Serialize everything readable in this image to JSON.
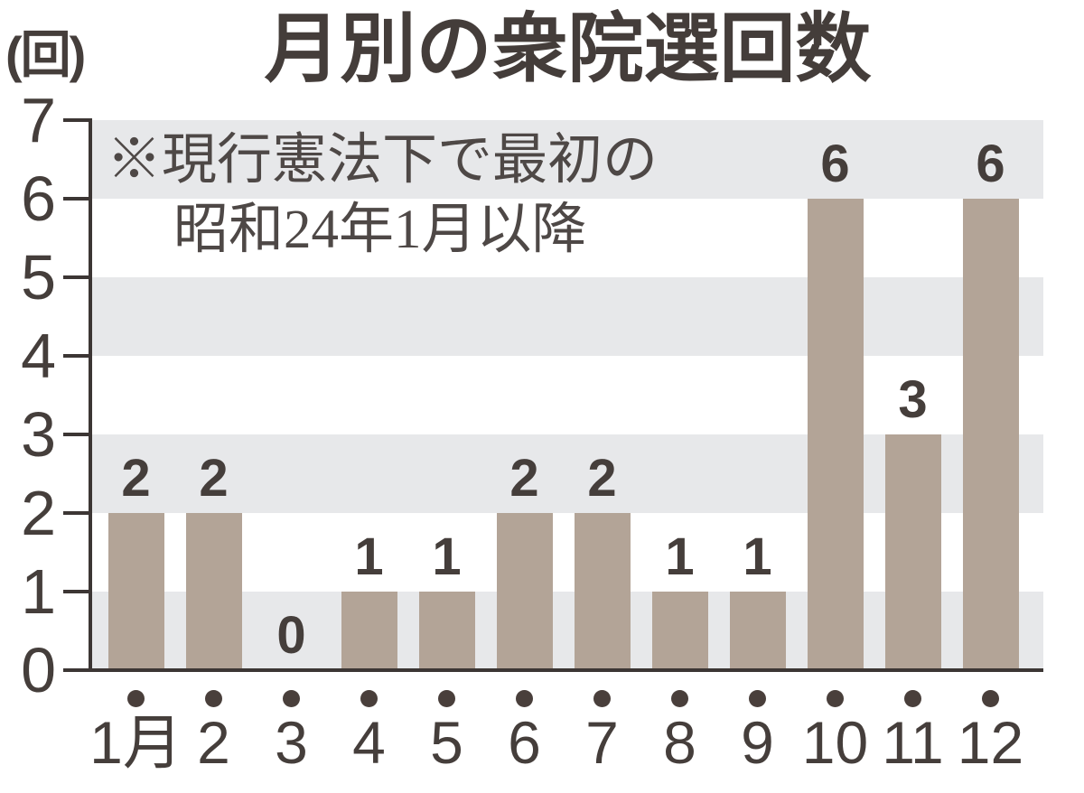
{
  "chart": {
    "title": "月別の衆院選回数",
    "unit_label": "(回)",
    "note_line1": "※現行憲法下で最初の",
    "note_line2": "昭和24年1月以降"
  },
  "chart_data": {
    "type": "bar",
    "title": "月別の衆院選回数",
    "ylabel": "(回)",
    "categories": [
      "1月",
      "2",
      "3",
      "4",
      "5",
      "6",
      "7",
      "8",
      "9",
      "10",
      "11",
      "12"
    ],
    "values": [
      2,
      2,
      0,
      1,
      1,
      2,
      2,
      1,
      1,
      6,
      3,
      6
    ],
    "ylim": [
      0,
      7
    ],
    "yticks": [
      0,
      1,
      2,
      3,
      4,
      5,
      6,
      7
    ],
    "annotation_lines": [
      "※現行憲法下で最初の",
      "昭和24年1月以降"
    ],
    "legend": "none",
    "grid": "alternating-horizontal-bands",
    "colors": {
      "bar": "#b3a497",
      "band": "#e7e8ea",
      "axis": "#3c3634",
      "text": "#453e3b",
      "dot": "#493f3b",
      "annotation_text": "#4e4846"
    }
  }
}
